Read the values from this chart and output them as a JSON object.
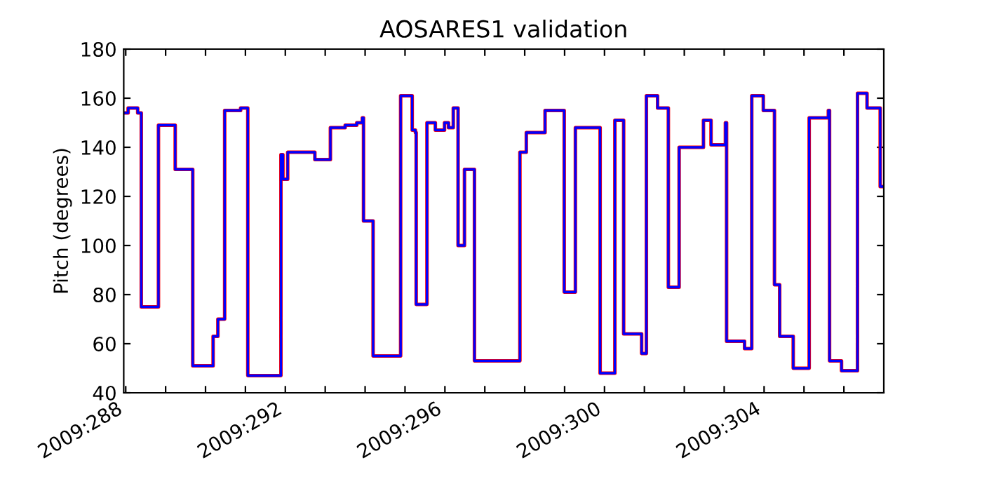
{
  "chart_data": {
    "type": "step",
    "title": "AOSARES1 validation",
    "ylabel": "Pitch (degrees)",
    "x": [
      "2009-10-14T22:48",
      "2009-10-15T01:26",
      "2009-10-15T07:12",
      "2009-10-15T09:22",
      "2009-10-15T19:41",
      "2009-10-16T05:46",
      "2009-10-16T16:19",
      "2009-10-17T04:34",
      "2009-10-17T07:26",
      "2009-10-17T11:31",
      "2009-10-17T21:07",
      "2009-10-18T01:26",
      "2009-10-18T21:22",
      "2009-10-18T22:34",
      "2009-10-19T01:26",
      "2009-10-19T17:46",
      "2009-10-20T03:07",
      "2009-10-20T12:00",
      "2009-10-20T18:58",
      "2009-10-20T22:19",
      "2009-10-20T23:02",
      "2009-10-21T04:48",
      "2009-10-21T21:22",
      "2009-10-22T04:19",
      "2009-10-22T06:14",
      "2009-10-22T06:43",
      "2009-10-22T13:12",
      "2009-10-22T18:14",
      "2009-10-22T23:46",
      "2009-10-23T02:10",
      "2009-10-23T05:02",
      "2009-10-23T07:55",
      "2009-10-23T11:46",
      "2009-10-23T17:46",
      "2009-10-24T21:07",
      "2009-10-25T00:58",
      "2009-10-25T12:14",
      "2009-10-25T23:46",
      "2009-10-26T06:29",
      "2009-10-26T21:22",
      "2009-10-27T06:14",
      "2009-10-27T11:31",
      "2009-10-27T22:19",
      "2009-10-28T01:12",
      "2009-10-28T07:55",
      "2009-10-28T14:24",
      "2009-10-28T20:53",
      "2009-10-29T11:31",
      "2009-10-29T16:05",
      "2009-10-30T00:43",
      "2009-10-30T01:26",
      "2009-10-30T12:14",
      "2009-10-30T16:34",
      "2009-10-30T23:31",
      "2009-10-31T06:14",
      "2009-10-31T09:22",
      "2009-10-31T17:31",
      "2009-11-01T03:07",
      "2009-11-01T14:38",
      "2009-11-01T15:22",
      "2009-11-01T22:34",
      "2009-11-02T08:10",
      "2009-11-02T13:55",
      "2009-11-02T21:50",
      "2009-11-03T00:00"
    ],
    "series": [
      {
        "color": "#ff0000",
        "values": [
          154,
          156,
          154,
          75,
          149,
          131,
          51,
          63,
          70,
          155,
          156,
          47,
          137,
          127,
          138,
          135,
          148,
          149,
          150,
          152,
          110,
          55,
          161,
          147,
          146,
          76,
          150,
          147,
          150,
          148,
          156,
          100,
          131,
          53,
          138,
          146,
          155,
          81,
          148,
          48,
          151,
          64,
          56,
          161,
          156,
          83,
          140,
          151,
          141,
          150,
          61,
          58,
          161,
          155,
          84,
          63,
          50,
          152,
          155,
          53,
          49,
          162,
          156,
          124,
          124
        ]
      },
      {
        "color": "#0000ff",
        "values": [
          154,
          156,
          154,
          75,
          149,
          131,
          51,
          63,
          70,
          155,
          156,
          47,
          137,
          127,
          138,
          135,
          148,
          149,
          150,
          152,
          110,
          55,
          161,
          147,
          146,
          76,
          150,
          147,
          150,
          148,
          156,
          100,
          131,
          53,
          138,
          146,
          155,
          81,
          148,
          48,
          151,
          64,
          56,
          161,
          156,
          83,
          140,
          151,
          141,
          150,
          61,
          58,
          161,
          155,
          84,
          63,
          50,
          152,
          155,
          53,
          49,
          162,
          156,
          124,
          124
        ]
      }
    ],
    "xlim": [
      "2009-10-14T22:48",
      "2009-11-03T00:00"
    ],
    "xticks": [
      {
        "value": "2009-10-15",
        "label": "2009:288"
      },
      {
        "value": "2009-10-16",
        "label": null
      },
      {
        "value": "2009-10-17",
        "label": null
      },
      {
        "value": "2009-10-18",
        "label": null
      },
      {
        "value": "2009-10-19",
        "label": "2009:292"
      },
      {
        "value": "2009-10-20",
        "label": null
      },
      {
        "value": "2009-10-21",
        "label": null
      },
      {
        "value": "2009-10-22",
        "label": null
      },
      {
        "value": "2009-10-23",
        "label": "2009:296"
      },
      {
        "value": "2009-10-24",
        "label": null
      },
      {
        "value": "2009-10-25",
        "label": null
      },
      {
        "value": "2009-10-26",
        "label": null
      },
      {
        "value": "2009-10-27",
        "label": "2009:300"
      },
      {
        "value": "2009-10-28",
        "label": null
      },
      {
        "value": "2009-10-29",
        "label": null
      },
      {
        "value": "2009-10-30",
        "label": null
      },
      {
        "value": "2009-10-31",
        "label": "2009:304"
      },
      {
        "value": "2009-11-01",
        "label": null
      },
      {
        "value": "2009-11-02",
        "label": null
      }
    ],
    "ylim": [
      40,
      180
    ],
    "yticks": [
      40,
      60,
      80,
      100,
      120,
      140,
      160,
      180
    ],
    "grid": false
  }
}
